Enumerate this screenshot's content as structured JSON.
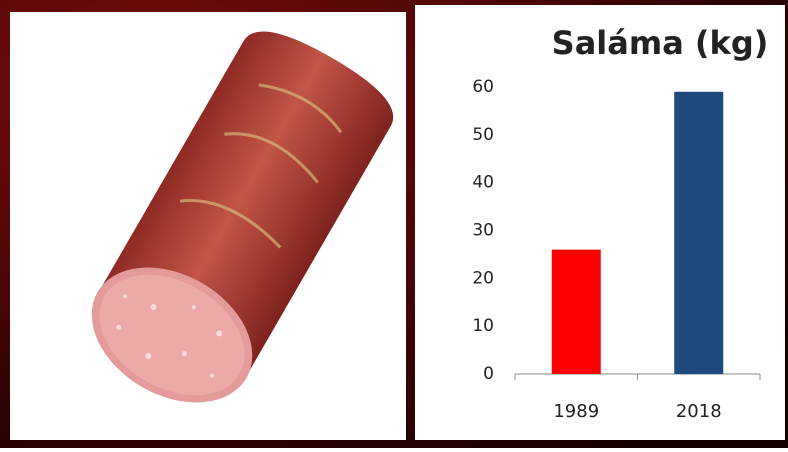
{
  "chart_data": {
    "type": "bar",
    "title": "Saláma (kg)",
    "categories": [
      "1989",
      "2018"
    ],
    "values": [
      26,
      59
    ],
    "colors": [
      "#ff0000",
      "#1f497d"
    ],
    "ylim": [
      0,
      60
    ],
    "yticks": [
      0,
      10,
      20,
      30,
      40,
      50,
      60
    ],
    "grid": false
  }
}
